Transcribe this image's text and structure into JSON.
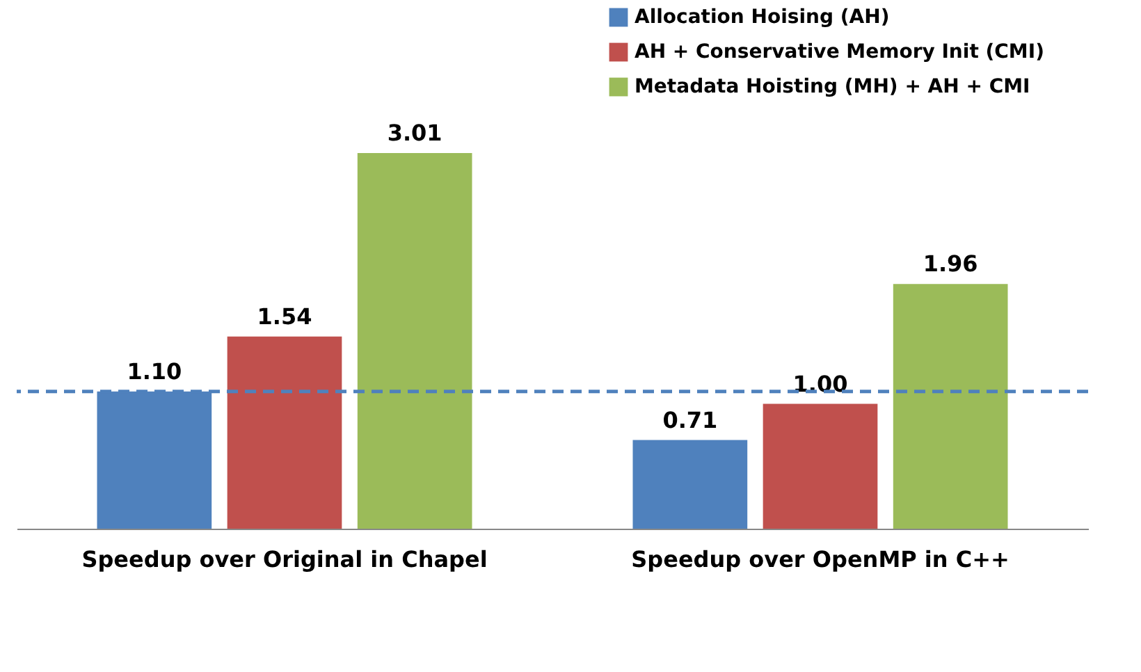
{
  "chart_data": {
    "type": "bar",
    "categories": [
      "Speedup over Original in Chapel",
      "Speedup over OpenMP in C++"
    ],
    "series": [
      {
        "name": "Allocation Hoising (AH)",
        "color": "#4f81bd",
        "values": [
          1.1,
          0.71
        ],
        "value_labels": [
          "1.10",
          "0.71"
        ]
      },
      {
        "name": "AH + Conservative Memory Init (CMI)",
        "color": "#c0504d",
        "values": [
          1.54,
          1.0
        ],
        "value_labels": [
          "1.54",
          "1.00"
        ]
      },
      {
        "name": "Metadata Hoisting (MH) + AH + CMI",
        "color": "#9bbb59",
        "values": [
          3.01,
          1.96
        ],
        "value_labels": [
          "3.01",
          "1.96"
        ]
      }
    ],
    "legend": "top right",
    "grid": false,
    "ref_lines": [
      {
        "axis": "y",
        "value": 1.1,
        "color": "#4f81bd",
        "line_style": "dashed"
      }
    ]
  }
}
